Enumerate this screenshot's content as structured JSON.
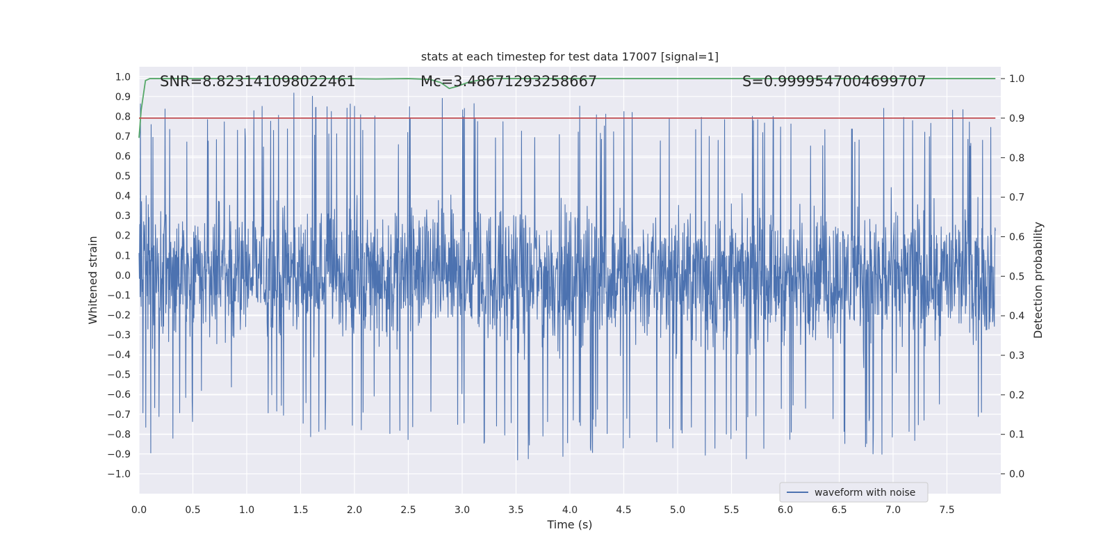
{
  "chart_data": {
    "type": "line",
    "title": "stats at each timestep for test data 17007 [signal=1]",
    "xlabel": "Time (s)",
    "ylabel": "Whitened strain",
    "y2label": "Detection probability",
    "xlim": [
      0.0,
      8.0
    ],
    "ylim": [
      -1.1,
      1.05
    ],
    "y2lim": [
      -0.05,
      1.03
    ],
    "xticks": [
      "0.0",
      "0.5",
      "1.0",
      "1.5",
      "2.0",
      "2.5",
      "3.0",
      "3.5",
      "4.0",
      "4.5",
      "5.0",
      "5.5",
      "6.0",
      "6.5",
      "7.0",
      "7.5"
    ],
    "yticks": [
      "1.0",
      "0.9",
      "0.8",
      "0.7",
      "0.6",
      "0.5",
      "0.4",
      "0.3",
      "0.2",
      "0.1",
      "0.0",
      "−0.1",
      "−0.2",
      "−0.3",
      "−0.4",
      "−0.5",
      "−0.6",
      "−0.7",
      "−0.8",
      "−0.9",
      "−1.0"
    ],
    "y2ticks": [
      "1.0",
      "0.9",
      "0.8",
      "0.7",
      "0.6",
      "0.5",
      "0.4",
      "0.3",
      "0.2",
      "0.1",
      "0.0"
    ],
    "grid": true,
    "legend_position": "lower-right",
    "series": [
      {
        "name": "waveform with noise",
        "axis": "left",
        "color": "#4c72b0",
        "envelope": {
          "t": [
            0.0,
            0.5,
            1.0,
            1.5,
            2.0,
            2.5,
            3.0,
            3.5,
            4.0,
            4.5,
            5.0,
            5.5,
            6.0,
            6.5,
            7.0,
            7.5,
            7.95
          ],
          "max": [
            0.95,
            0.82,
            0.82,
            0.95,
            0.87,
            0.85,
            0.93,
            0.82,
            0.88,
            0.86,
            0.81,
            0.81,
            0.82,
            0.85,
            0.85,
            0.85,
            0.88
          ],
          "min": [
            -0.93,
            -0.78,
            -0.73,
            -0.84,
            -0.78,
            -0.85,
            -0.79,
            -0.98,
            -0.92,
            -0.87,
            -1.0,
            -0.97,
            -0.84,
            -0.88,
            -0.98,
            -0.83,
            -0.83
          ]
        }
      },
      {
        "name": "",
        "axis": "right",
        "color": "#55a868",
        "x": [
          0.0,
          0.02,
          0.06,
          0.1,
          0.15,
          0.5,
          1.0,
          1.5,
          1.9,
          2.2,
          2.5,
          2.7,
          2.8,
          2.88,
          2.95,
          3.05,
          3.15,
          3.3,
          4.0,
          5.0,
          6.0,
          7.0,
          7.95
        ],
        "y": [
          0.85,
          0.92,
          0.995,
          1.0,
          1.0,
          1.0,
          1.0,
          1.0,
          1.0,
          0.999,
          1.0,
          0.998,
          0.99,
          0.975,
          0.98,
          0.99,
          0.996,
          1.0,
          1.0,
          1.0,
          1.0,
          1.0,
          1.0
        ]
      },
      {
        "name": "",
        "axis": "right",
        "color": "#c44e52",
        "x": [
          0.0,
          7.95
        ],
        "y": [
          0.9,
          0.9
        ]
      }
    ],
    "annotations": [
      {
        "text": "SNR=8.823141098022461"
      },
      {
        "text": "Mc=3.48671293258667"
      },
      {
        "text": "S=0.9999547004699707"
      }
    ]
  }
}
